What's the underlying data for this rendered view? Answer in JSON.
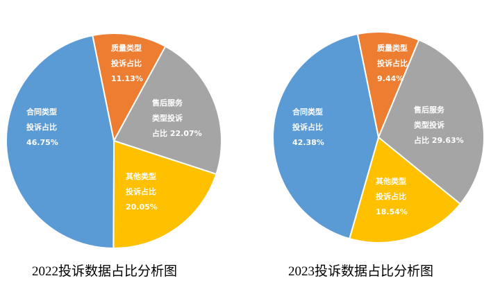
{
  "chart_data": [
    {
      "type": "pie",
      "title": "2022投诉数据占比分析图",
      "slices": [
        {
          "name": "合同类型投诉占比",
          "lines": [
            "合同类型",
            "投诉占比",
            "46.75%"
          ],
          "value": 46.75,
          "color": "#5b9bd5"
        },
        {
          "name": "质量类型投诉占比",
          "lines": [
            "质量类型",
            "投诉占比",
            "11.13%"
          ],
          "value": 11.13,
          "color": "#ed7d31"
        },
        {
          "name": "售后服务类型投诉占比",
          "lines": [
            "售后服务",
            "类型投诉",
            "占比 22.07%"
          ],
          "value": 22.07,
          "color": "#a5a5a5"
        },
        {
          "name": "其他类型投诉占比",
          "lines": [
            "其他类型",
            "投诉占比",
            "20.05%"
          ],
          "value": 20.05,
          "color": "#ffc000"
        }
      ]
    },
    {
      "type": "pie",
      "title": "2023投诉数据占比分析图",
      "slices": [
        {
          "name": "合同类型投诉占比",
          "lines": [
            "合同类型",
            "投诉占比",
            "42.38%"
          ],
          "value": 42.38,
          "color": "#5b9bd5"
        },
        {
          "name": "质量类型投诉占比",
          "lines": [
            "质量类型",
            "投诉占比",
            "9.44%"
          ],
          "value": 9.44,
          "color": "#ed7d31"
        },
        {
          "name": "售后服务类型投诉占比",
          "lines": [
            "售后服务",
            "类型投诉",
            "占比 29.63%"
          ],
          "value": 29.63,
          "color": "#a5a5a5"
        },
        {
          "name": "其他类型投诉占比",
          "lines": [
            "其他类型",
            "投诉占比",
            "18.54%"
          ],
          "value": 18.54,
          "color": "#ffc000"
        }
      ]
    }
  ]
}
